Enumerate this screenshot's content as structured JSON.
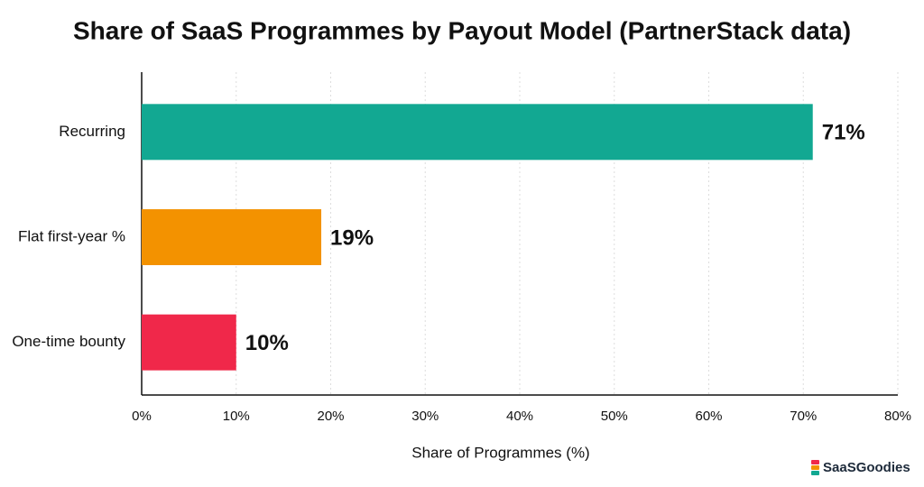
{
  "chart_data": {
    "type": "hbar",
    "title": "Share of SaaS Programmes by Payout Model (PartnerStack data)",
    "x_label": "Share of Programmes (%)",
    "categories": [
      "Recurring",
      "Flat first-year %",
      "One-time bounty"
    ],
    "values": [
      71,
      19,
      10
    ],
    "value_labels": [
      "71%",
      "19%",
      "10%"
    ],
    "colors": [
      "#12a892",
      "#f39200",
      "#f0284a"
    ],
    "xlim": [
      0,
      80
    ],
    "xticks": [
      {
        "value": 0,
        "label": "0%"
      },
      {
        "value": 10,
        "label": "10%"
      },
      {
        "value": 20,
        "label": "20%"
      },
      {
        "value": 30,
        "label": "30%"
      },
      {
        "value": 40,
        "label": "40%"
      },
      {
        "value": 50,
        "label": "50%"
      },
      {
        "value": 60,
        "label": "60%"
      },
      {
        "value": 70,
        "label": "70%"
      },
      {
        "value": 80,
        "label": "80%"
      }
    ],
    "grid": true,
    "watermark": "SaaSGoodies"
  }
}
